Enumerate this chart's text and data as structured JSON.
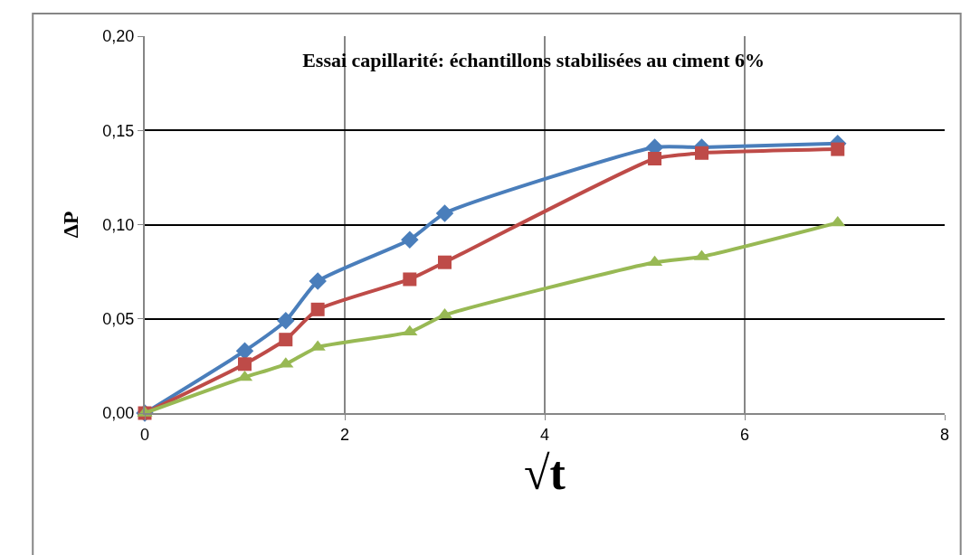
{
  "chart_data": {
    "type": "line",
    "title": "Essai capillarité: échantillons stabilisées au ciment 6%",
    "xlabel": "√t",
    "ylabel": "ΔP",
    "x": [
      0,
      1,
      1.41,
      1.73,
      2.65,
      3,
      5.1,
      5.57,
      6.93
    ],
    "series": [
      {
        "color": "#4a7ebb",
        "marker": "diamond",
        "values": [
          0,
          0.033,
          0.049,
          0.07,
          0.092,
          0.106,
          0.141,
          0.141,
          0.143
        ]
      },
      {
        "color": "#be4b48",
        "marker": "square",
        "values": [
          0,
          0.026,
          0.039,
          0.055,
          0.071,
          0.08,
          0.135,
          0.138,
          0.14
        ]
      },
      {
        "color": "#98b954",
        "marker": "triangle",
        "values": [
          0,
          0.019,
          0.026,
          0.035,
          0.043,
          0.052,
          0.08,
          0.083,
          0.101
        ]
      }
    ],
    "xlim": [
      0,
      8
    ],
    "xticks": [
      0,
      2,
      4,
      6,
      8
    ],
    "ylim": [
      0,
      0.2
    ],
    "yticks": [
      {
        "value": 0,
        "label": "0,00"
      },
      {
        "value": 0.05,
        "label": "0,05"
      },
      {
        "value": 0.1,
        "label": "0,10"
      },
      {
        "value": 0.15,
        "label": "0,15"
      },
      {
        "value": 0.2,
        "label": "0,20"
      }
    ],
    "grid": true,
    "line_style": "solid"
  }
}
